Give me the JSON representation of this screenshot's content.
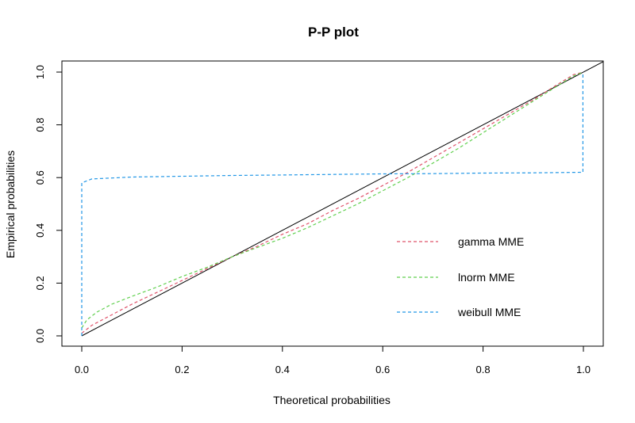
{
  "chart_data": {
    "type": "line",
    "title": "P-P plot",
    "xlabel": "Theoretical probabilities",
    "ylabel": "Empirical probabilities",
    "xlim": [
      0,
      1
    ],
    "ylim": [
      0,
      1
    ],
    "xticks": [
      "0.0",
      "0.2",
      "0.4",
      "0.6",
      "0.8",
      "1.0"
    ],
    "yticks": [
      "0.0",
      "0.2",
      "0.4",
      "0.6",
      "0.8",
      "1.0"
    ],
    "grid": false,
    "legend_position": "bottom-right",
    "reference_line": {
      "from": [
        0,
        0
      ],
      "to": [
        1,
        1
      ],
      "color": "#000000"
    },
    "series": [
      {
        "name": "gamma MME",
        "color": "#DF536B",
        "style": "dashed",
        "points": [
          [
            0.0,
            0.01
          ],
          [
            0.02,
            0.04
          ],
          [
            0.05,
            0.07
          ],
          [
            0.1,
            0.12
          ],
          [
            0.15,
            0.165
          ],
          [
            0.2,
            0.21
          ],
          [
            0.25,
            0.255
          ],
          [
            0.3,
            0.3
          ],
          [
            0.35,
            0.34
          ],
          [
            0.4,
            0.385
          ],
          [
            0.45,
            0.425
          ],
          [
            0.5,
            0.475
          ],
          [
            0.55,
            0.52
          ],
          [
            0.6,
            0.57
          ],
          [
            0.65,
            0.62
          ],
          [
            0.7,
            0.675
          ],
          [
            0.75,
            0.73
          ],
          [
            0.8,
            0.785
          ],
          [
            0.85,
            0.84
          ],
          [
            0.9,
            0.895
          ],
          [
            0.95,
            0.955
          ],
          [
            0.98,
            0.99
          ],
          [
            1.0,
            1.0
          ]
        ]
      },
      {
        "name": "lnorm MME",
        "color": "#61D04F",
        "style": "dashed",
        "points": [
          [
            0.0,
            0.03
          ],
          [
            0.01,
            0.06
          ],
          [
            0.03,
            0.09
          ],
          [
            0.06,
            0.12
          ],
          [
            0.1,
            0.15
          ],
          [
            0.15,
            0.185
          ],
          [
            0.2,
            0.225
          ],
          [
            0.25,
            0.26
          ],
          [
            0.3,
            0.3
          ],
          [
            0.35,
            0.335
          ],
          [
            0.4,
            0.37
          ],
          [
            0.45,
            0.41
          ],
          [
            0.5,
            0.455
          ],
          [
            0.55,
            0.5
          ],
          [
            0.6,
            0.55
          ],
          [
            0.65,
            0.6
          ],
          [
            0.7,
            0.655
          ],
          [
            0.75,
            0.71
          ],
          [
            0.8,
            0.77
          ],
          [
            0.85,
            0.83
          ],
          [
            0.9,
            0.89
          ],
          [
            0.95,
            0.95
          ],
          [
            0.98,
            0.985
          ],
          [
            1.0,
            1.0
          ]
        ]
      },
      {
        "name": "weibull MME",
        "color": "#2297E6",
        "style": "dashed",
        "points": [
          [
            0.0,
            0.0
          ],
          [
            0.0,
            0.58
          ],
          [
            0.02,
            0.595
          ],
          [
            0.1,
            0.602
          ],
          [
            0.2,
            0.605
          ],
          [
            0.3,
            0.608
          ],
          [
            0.4,
            0.61
          ],
          [
            0.5,
            0.612
          ],
          [
            0.6,
            0.614
          ],
          [
            0.7,
            0.615
          ],
          [
            0.8,
            0.617
          ],
          [
            0.9,
            0.618
          ],
          [
            0.999,
            0.62
          ],
          [
            0.999,
            0.995
          ],
          [
            1.0,
            1.0
          ]
        ]
      }
    ]
  }
}
